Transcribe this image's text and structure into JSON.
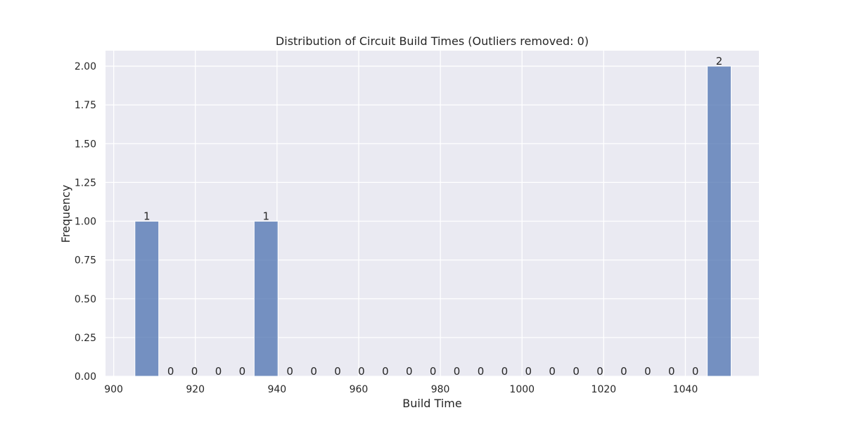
{
  "chart_data": {
    "type": "bar",
    "title": "Distribution of Circuit Build Times (Outliers removed: 0)",
    "xlabel": "Build Time",
    "ylabel": "Frequency",
    "xlim": [
      898,
      1058
    ],
    "ylim": [
      0,
      2.1
    ],
    "xticks": [
      900,
      920,
      940,
      960,
      980,
      1000,
      1020,
      1040
    ],
    "yticks": [
      "0.00",
      "0.25",
      "0.50",
      "0.75",
      "1.00",
      "1.25",
      "1.50",
      "1.75",
      "2.00"
    ],
    "grid": true,
    "bin_edges": [
      905.2,
      911.04,
      916.88,
      922.72,
      928.56,
      934.4,
      940.24,
      946.08,
      951.92,
      957.76,
      963.6,
      969.44,
      975.28,
      981.12,
      986.96,
      992.8,
      998.64,
      1004.48,
      1010.32,
      1016.16,
      1022.0,
      1027.84,
      1033.68,
      1039.52,
      1045.36,
      1051.2
    ],
    "values": [
      1,
      0,
      0,
      0,
      0,
      1,
      0,
      0,
      0,
      0,
      0,
      0,
      0,
      0,
      0,
      0,
      0,
      0,
      0,
      0,
      0,
      0,
      0,
      0,
      2
    ],
    "bar_color": "#4c72b0",
    "background_color": "#eaeaf2"
  }
}
